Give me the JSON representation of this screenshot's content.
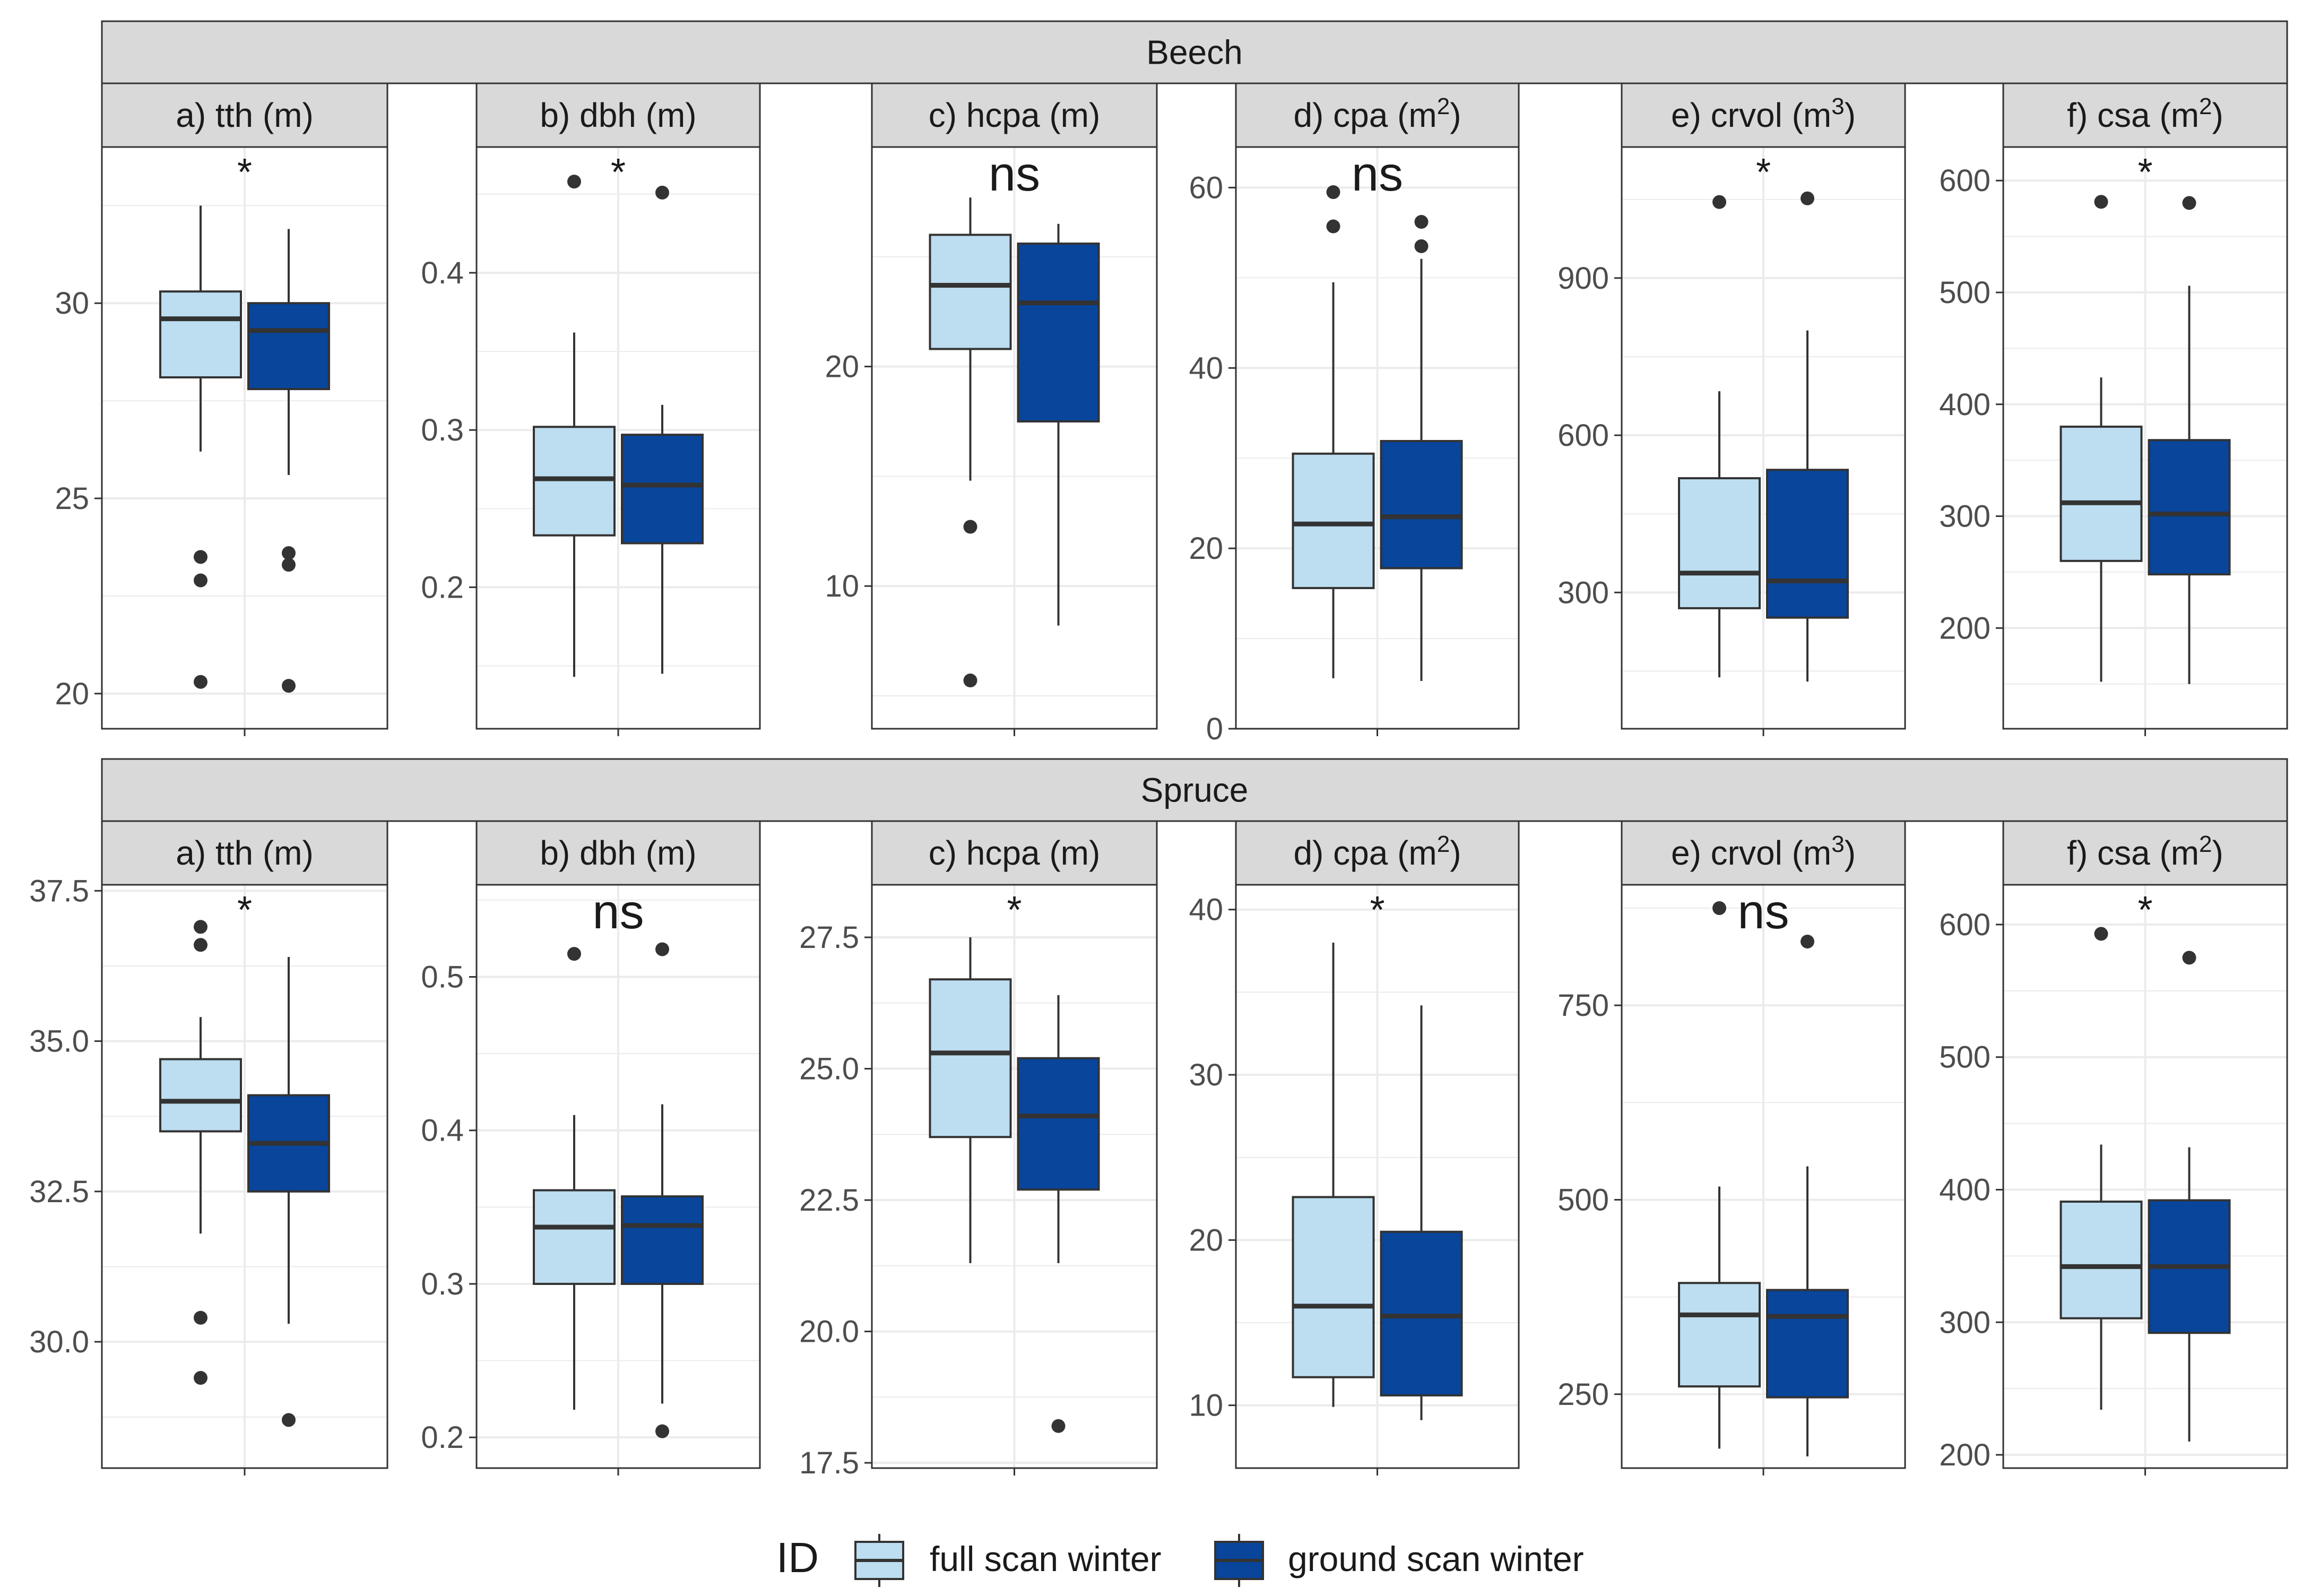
{
  "chart_data": {
    "type": "boxplot",
    "legend": {
      "title": "ID",
      "position": "bottom",
      "entries": [
        {
          "label": "full scan winter",
          "color": "#BDDDF0"
        },
        {
          "label": "ground scan winter",
          "color": "#08459B"
        }
      ]
    },
    "colors": {
      "full": "#BDDDF0",
      "ground": "#08459B",
      "strip": "#D9D9D9",
      "grid": "#EBEBEB",
      "frame": "#333333",
      "text": "#4D4D4D"
    },
    "rows": [
      {
        "group": "Beech",
        "panels": [
          {
            "title": "a) tth (m)",
            "sig": "*",
            "ylim": [
              19.1,
              34.0
            ],
            "ticks": [
              20,
              25,
              30
            ],
            "tick_labels": [
              "20",
              "25",
              "30"
            ],
            "boxes": [
              {
                "series": "full scan winter",
                "min": 26.2,
                "q1": 28.1,
                "median": 29.6,
                "q3": 30.3,
                "max": 32.5,
                "outliers": [
                  23.5,
                  22.9,
                  20.3
                ]
              },
              {
                "series": "ground scan winter",
                "min": 25.6,
                "q1": 27.8,
                "median": 29.3,
                "q3": 30.0,
                "max": 31.9,
                "outliers": [
                  23.6,
                  23.3,
                  20.2
                ]
              }
            ]
          },
          {
            "title": "b) dbh (m)",
            "sig": "*",
            "ylim": [
              0.11,
              0.48
            ],
            "ticks": [
              0.2,
              0.3,
              0.4
            ],
            "tick_labels": [
              "0.2",
              "0.3",
              "0.4"
            ],
            "boxes": [
              {
                "series": "full scan winter",
                "min": 0.143,
                "q1": 0.233,
                "median": 0.269,
                "q3": 0.302,
                "max": 0.362,
                "outliers": [
                  0.458
                ]
              },
              {
                "series": "ground scan winter",
                "min": 0.145,
                "q1": 0.228,
                "median": 0.265,
                "q3": 0.297,
                "max": 0.316,
                "outliers": [
                  0.451
                ]
              }
            ]
          },
          {
            "title": "c) hcpa (m)",
            "sig": "ns",
            "ylim": [
              3.5,
              30.0
            ],
            "ticks": [
              10,
              20
            ],
            "tick_labels": [
              "10",
              "20"
            ],
            "boxes": [
              {
                "series": "full scan winter",
                "min": 14.8,
                "q1": 20.8,
                "median": 23.7,
                "q3": 26.0,
                "max": 27.7,
                "outliers": [
                  12.7,
                  5.7
                ]
              },
              {
                "series": "ground scan winter",
                "min": 8.2,
                "q1": 17.5,
                "median": 22.9,
                "q3": 25.6,
                "max": 26.5,
                "outliers": []
              }
            ]
          },
          {
            "title": "d) cpa (m²)",
            "title_base": "d) cpa (m",
            "title_sup": "2",
            "title_end": ")",
            "sig": "ns",
            "ylim": [
              0,
              64.5
            ],
            "ticks": [
              0,
              20,
              40,
              60
            ],
            "tick_labels": [
              "0",
              "20",
              "40",
              "60"
            ],
            "boxes": [
              {
                "series": "full scan winter",
                "min": 5.6,
                "q1": 15.6,
                "median": 22.7,
                "q3": 30.5,
                "max": 49.5,
                "outliers": [
                  59.5,
                  55.7
                ]
              },
              {
                "series": "ground scan winter",
                "min": 5.3,
                "q1": 17.8,
                "median": 23.5,
                "q3": 31.9,
                "max": 52.1,
                "outliers": [
                  56.2,
                  53.5
                ]
              }
            ]
          },
          {
            "title": "e) crvol (m³)",
            "title_base": "e) crvol (m",
            "title_sup": "3",
            "title_end": ")",
            "sig": "*",
            "ylim": [
              40,
              1150
            ],
            "ticks": [
              300,
              600,
              900
            ],
            "tick_labels": [
              "300",
              "600",
              "900"
            ],
            "boxes": [
              {
                "series": "full scan winter",
                "min": 138,
                "q1": 270,
                "median": 337,
                "q3": 518,
                "max": 684,
                "outliers": [
                  1045
                ]
              },
              {
                "series": "ground scan winter",
                "min": 130,
                "q1": 252,
                "median": 322,
                "q3": 534,
                "max": 800,
                "outliers": [
                  1052
                ]
              }
            ]
          },
          {
            "title": "f) csa (m²)",
            "title_base": "f) csa (m",
            "title_sup": "2",
            "title_end": ")",
            "sig": "*",
            "ylim": [
              110,
              630
            ],
            "ticks": [
              200,
              300,
              400,
              500,
              600
            ],
            "tick_labels": [
              "200",
              "300",
              "400",
              "500",
              "600"
            ],
            "boxes": [
              {
                "series": "full scan winter",
                "min": 152,
                "q1": 260,
                "median": 312,
                "q3": 380,
                "max": 424,
                "outliers": [
                  581
                ]
              },
              {
                "series": "ground scan winter",
                "min": 150,
                "q1": 248,
                "median": 302,
                "q3": 368,
                "max": 506,
                "outliers": [
                  580
                ]
              }
            ]
          }
        ]
      },
      {
        "group": "Spruce",
        "panels": [
          {
            "title": "a) tth (m)",
            "sig": "*",
            "ylim": [
              27.9,
              37.6
            ],
            "ticks": [
              30.0,
              32.5,
              35.0,
              37.5
            ],
            "tick_labels": [
              "30.0",
              "32.5",
              "35.0",
              "37.5"
            ],
            "boxes": [
              {
                "series": "full scan winter",
                "min": 31.8,
                "q1": 33.5,
                "median": 34.0,
                "q3": 34.7,
                "max": 35.4,
                "outliers": [
                  36.9,
                  36.6,
                  30.4,
                  29.4
                ]
              },
              {
                "series": "ground scan winter",
                "min": 30.3,
                "q1": 32.5,
                "median": 33.3,
                "q3": 34.1,
                "max": 36.4,
                "outliers": [
                  28.7
                ]
              }
            ]
          },
          {
            "title": "b) dbh (m)",
            "sig": "ns",
            "ylim": [
              0.18,
              0.56
            ],
            "ticks": [
              0.2,
              0.3,
              0.4,
              0.5
            ],
            "tick_labels": [
              "0.2",
              "0.3",
              "0.4",
              "0.5"
            ],
            "boxes": [
              {
                "series": "full scan winter",
                "min": 0.218,
                "q1": 0.3,
                "median": 0.337,
                "q3": 0.361,
                "max": 0.41,
                "outliers": [
                  0.515
                ]
              },
              {
                "series": "ground scan winter",
                "min": 0.222,
                "q1": 0.3,
                "median": 0.338,
                "q3": 0.357,
                "max": 0.417,
                "outliers": [
                  0.518,
                  0.204
                ]
              }
            ]
          },
          {
            "title": "c) hcpa (m)",
            "sig": "*",
            "ylim": [
              17.4,
              28.5
            ],
            "ticks": [
              17.5,
              20.0,
              22.5,
              25.0,
              27.5
            ],
            "tick_labels": [
              "17.5",
              "20.0",
              "22.5",
              "25.0",
              "27.5"
            ],
            "boxes": [
              {
                "series": "full scan winter",
                "min": 21.3,
                "q1": 23.7,
                "median": 25.3,
                "q3": 26.7,
                "max": 27.5,
                "outliers": []
              },
              {
                "series": "ground scan winter",
                "min": 21.3,
                "q1": 22.7,
                "median": 24.1,
                "q3": 25.2,
                "max": 26.4,
                "outliers": [
                  18.2
                ]
              }
            ]
          },
          {
            "title": "d) cpa (m²)",
            "title_base": "d) cpa (m",
            "title_sup": "2",
            "title_end": ")",
            "sig": "*",
            "ylim": [
              6.2,
              41.5
            ],
            "ticks": [
              10,
              20,
              30,
              40
            ],
            "tick_labels": [
              "10",
              "20",
              "30",
              "40"
            ],
            "boxes": [
              {
                "series": "full scan winter",
                "min": 9.9,
                "q1": 11.7,
                "median": 16.0,
                "q3": 22.6,
                "max": 38.0,
                "outliers": []
              },
              {
                "series": "ground scan winter",
                "min": 9.1,
                "q1": 10.6,
                "median": 15.4,
                "q3": 20.5,
                "max": 34.2,
                "outliers": []
              }
            ]
          },
          {
            "title": "e) crvol (m³)",
            "title_base": "e) crvol (m",
            "title_sup": "3",
            "title_end": ")",
            "sig": "ns",
            "ylim": [
              155,
              905
            ],
            "ticks": [
              250,
              500,
              750
            ],
            "tick_labels": [
              "250",
              "500",
              "750"
            ],
            "boxes": [
              {
                "series": "full scan winter",
                "min": 180,
                "q1": 260,
                "median": 352,
                "q3": 393,
                "max": 517,
                "outliers": [
                  875
                ]
              },
              {
                "series": "ground scan winter",
                "min": 170,
                "q1": 246,
                "median": 350,
                "q3": 384,
                "max": 543,
                "outliers": [
                  832
                ]
              }
            ]
          },
          {
            "title": "f) csa (m²)",
            "title_base": "f) csa (m",
            "title_sup": "2",
            "title_end": ")",
            "sig": "*",
            "ylim": [
              190,
              630
            ],
            "ticks": [
              200,
              300,
              400,
              500,
              600
            ],
            "tick_labels": [
              "200",
              "300",
              "400",
              "500",
              "600"
            ],
            "boxes": [
              {
                "series": "full scan winter",
                "min": 234,
                "q1": 303,
                "median": 342,
                "q3": 391,
                "max": 434,
                "outliers": [
                  593
                ]
              },
              {
                "series": "ground scan winter",
                "min": 210,
                "q1": 292,
                "median": 342,
                "q3": 392,
                "max": 432,
                "outliers": [
                  575
                ]
              }
            ]
          }
        ]
      }
    ]
  }
}
